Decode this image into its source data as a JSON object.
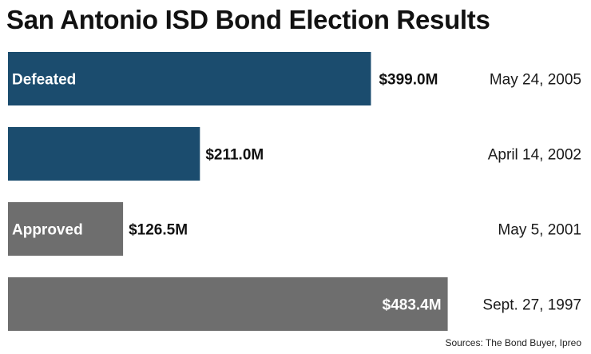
{
  "title": "San Antonio ISD Bond Election Results",
  "source": "Sources: The Bond Buyer, Ipreo",
  "colors": {
    "defeated": "#1b4c6e",
    "approved": "#6e6e6e"
  },
  "chart_data": {
    "type": "bar",
    "orientation": "horizontal",
    "title": "San Antonio ISD Bond Election Results",
    "categories": [
      "May 24, 2005",
      "April 14, 2002",
      "May 5, 2001",
      "Sept. 27, 1997"
    ],
    "values": [
      399.0,
      211.0,
      126.5,
      483.4
    ],
    "value_labels": [
      "$399.0M",
      "$211.0M",
      "$126.5M",
      "$483.4M"
    ],
    "outcomes": [
      "Defeated",
      "Defeated",
      "Approved",
      "Approved"
    ],
    "group_labels": [
      "Defeated",
      "",
      "Approved",
      ""
    ],
    "unit": "$M",
    "grid": false,
    "legend": "inline"
  }
}
